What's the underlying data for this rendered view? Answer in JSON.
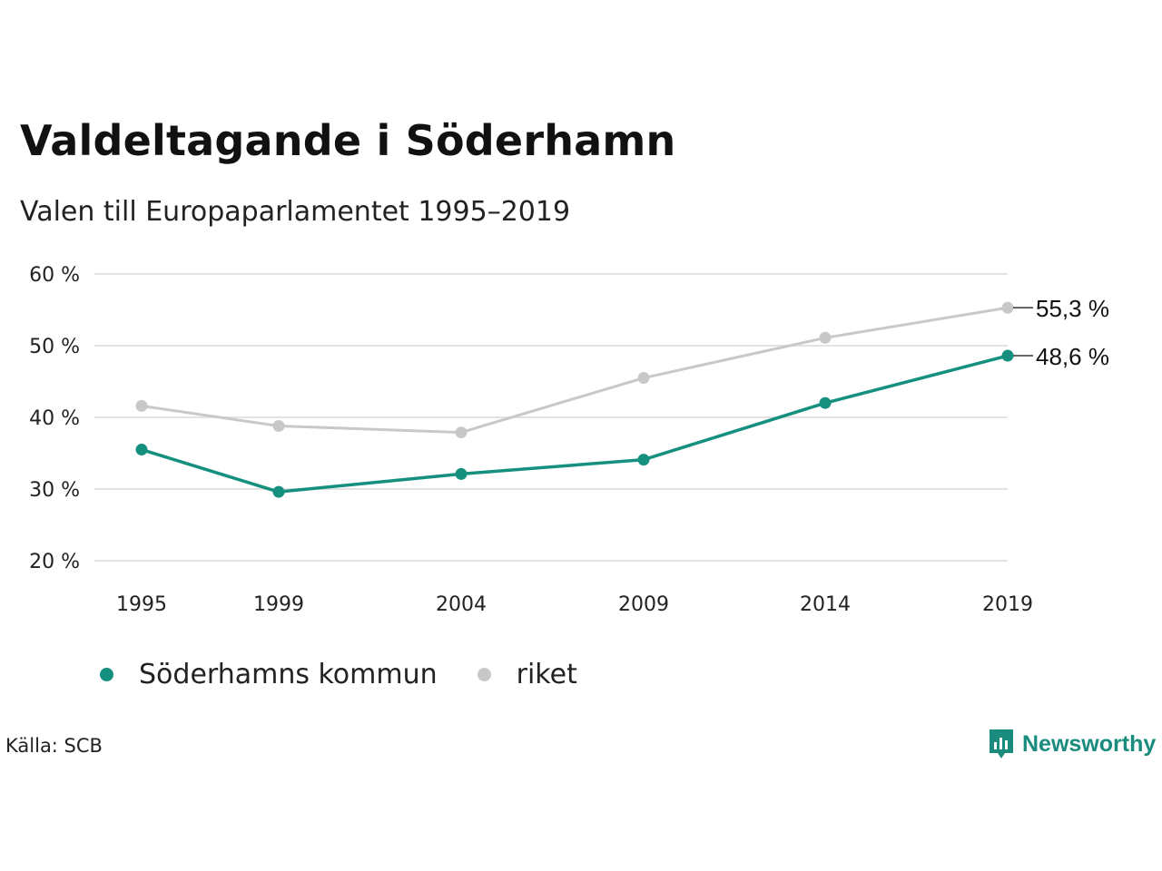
{
  "title": "Valdeltagande i Söderhamn",
  "subtitle": "Valen till Europaparlamentet 1995–2019",
  "source": "Källa: SCB",
  "brand": {
    "name": "Newsworthy",
    "icon": "newsworthy-logo-icon"
  },
  "colors": {
    "kommun": "#15907f",
    "riket": "#c8c8c8",
    "grid": "#e3e3e3",
    "text": "#222222"
  },
  "chart_data": {
    "type": "line",
    "x": [
      "1995",
      "1999",
      "2004",
      "2009",
      "2014",
      "2019"
    ],
    "ylim": [
      20,
      60
    ],
    "yticks": [
      20,
      30,
      40,
      50,
      60
    ],
    "ytick_labels": [
      "20 %",
      "30 %",
      "40 %",
      "50 %",
      "60 %"
    ],
    "grid": true,
    "legend_position": "bottom-left",
    "series": [
      {
        "name": "Söderhamns kommun",
        "key": "kommun",
        "values": [
          35.5,
          29.6,
          32.1,
          34.1,
          42.0,
          48.6
        ],
        "end_label": "48,6 %"
      },
      {
        "name": "riket",
        "key": "riket",
        "values": [
          41.6,
          38.8,
          37.9,
          45.5,
          51.1,
          55.3
        ],
        "end_label": "55,3 %"
      }
    ]
  }
}
